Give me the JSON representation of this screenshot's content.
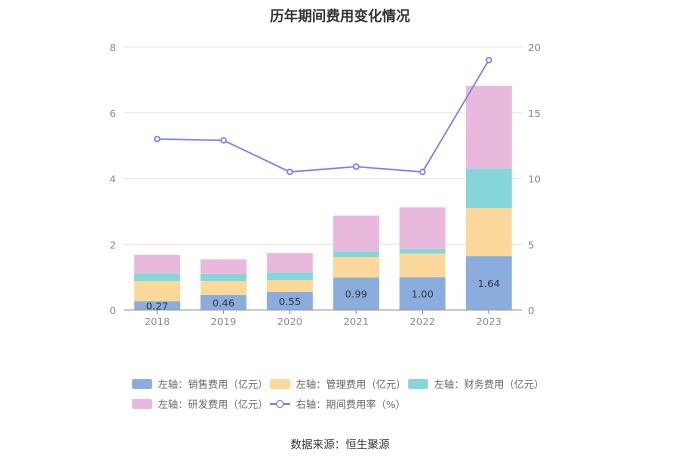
{
  "chart_data": {
    "type": "bar",
    "title": "历年期间费用变化情况",
    "categories": [
      "2018",
      "2019",
      "2020",
      "2021",
      "2022",
      "2023"
    ],
    "stacked": true,
    "series": [
      {
        "name": "左轴：销售费用（亿元）",
        "axis": "left",
        "type": "bar",
        "color": "#8badde",
        "values": [
          0.27,
          0.46,
          0.55,
          0.99,
          1.0,
          1.64
        ],
        "show_labels": true
      },
      {
        "name": "左轴：管理费用（亿元）",
        "axis": "left",
        "type": "bar",
        "color": "#fcd99a",
        "values": [
          0.61,
          0.42,
          0.36,
          0.62,
          0.72,
          1.46
        ],
        "show_labels": false
      },
      {
        "name": "左轴：财务费用（亿元）",
        "axis": "left",
        "type": "bar",
        "color": "#85d6d9",
        "values": [
          0.24,
          0.22,
          0.24,
          0.18,
          0.14,
          1.2
        ],
        "show_labels": false
      },
      {
        "name": "左轴：研发费用（亿元）",
        "axis": "left",
        "type": "bar",
        "color": "#e8b9dc",
        "values": [
          0.56,
          0.44,
          0.58,
          1.08,
          1.26,
          2.52
        ],
        "show_labels": false
      },
      {
        "name": "右轴：期间费用率（%）",
        "axis": "right",
        "type": "line",
        "color": "#7b7fef",
        "values": [
          13.0,
          12.9,
          10.5,
          10.9,
          10.5,
          19.0
        ],
        "show_labels": false
      }
    ],
    "left_axis": {
      "ylim": [
        0,
        8
      ],
      "ticks": [
        "0",
        "2",
        "4",
        "6",
        "8"
      ]
    },
    "right_axis": {
      "ylim": [
        0,
        20
      ],
      "ticks": [
        "0",
        "5",
        "10",
        "15",
        "20"
      ]
    },
    "grid": true,
    "legend_position": "bottom"
  },
  "source": "数据来源：恒生聚源"
}
